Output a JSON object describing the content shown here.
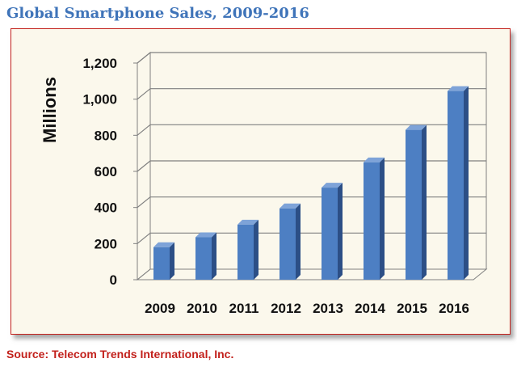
{
  "title": "Global Smartphone Sales, 2009-2016",
  "source": "Source: Telecom Trends International, Inc.",
  "colors": {
    "title": "#3f74b9",
    "source": "#c2201b",
    "frame_border": "#c2201b",
    "frame_fill": "#fbf8ec",
    "bar_front": "#4d7fc3",
    "bar_side": "#2c4f86",
    "bar_top": "#7ea3d8",
    "grid": "#808080"
  },
  "chart_data": {
    "type": "bar",
    "style": "3d-column",
    "title": "Global Smartphone Sales, 2009-2016",
    "xlabel": "",
    "ylabel": "Millions",
    "categories": [
      "2009",
      "2010",
      "2011",
      "2012",
      "2013",
      "2014",
      "2015",
      "2016"
    ],
    "series": [
      {
        "values": [
          180,
          235,
          305,
          395,
          510,
          650,
          830,
          1045
        ]
      }
    ],
    "ylim": [
      0,
      1200
    ],
    "yticks": [
      0,
      200,
      400,
      600,
      800,
      1000,
      1200
    ],
    "ytick_labels": [
      "0",
      "200",
      "400",
      "600",
      "800",
      "1,000",
      "1,200"
    ],
    "grid": true,
    "legend": "none"
  }
}
